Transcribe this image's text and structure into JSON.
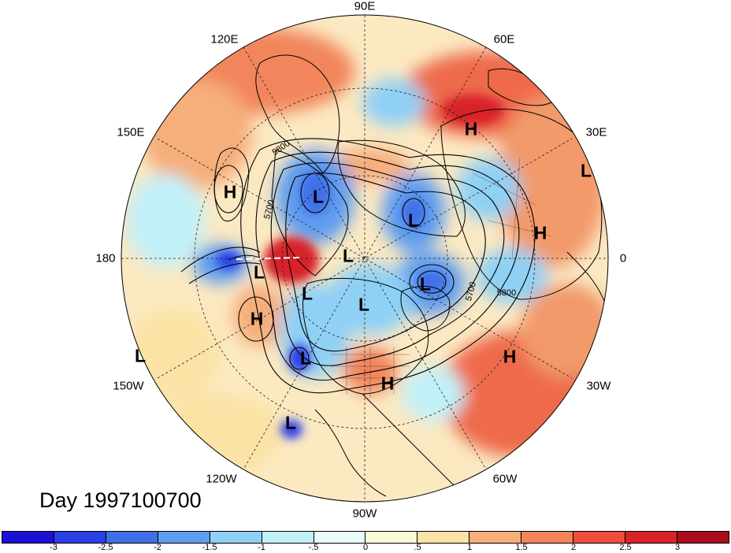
{
  "map": {
    "title": "Day 1997100700",
    "longitude_labels": [
      {
        "text": "90E",
        "angle": 90
      },
      {
        "text": "60E",
        "angle": 60
      },
      {
        "text": "30E",
        "angle": 30
      },
      {
        "text": "0",
        "angle": 0
      },
      {
        "text": "30W",
        "angle": -30
      },
      {
        "text": "60W",
        "angle": -60
      },
      {
        "text": "90W",
        "angle": -90
      },
      {
        "text": "120W",
        "angle": -120
      },
      {
        "text": "150W",
        "angle": -150
      },
      {
        "text": "180",
        "angle": 180
      },
      {
        "text": "150E",
        "angle": 150
      },
      {
        "text": "120E",
        "angle": 120
      }
    ],
    "contour_labels": [
      "5800",
      "5700",
      "5700",
      "5800"
    ],
    "pressure_centers": [
      {
        "type": "H",
        "name": "high-center-1"
      },
      {
        "type": "H",
        "name": "high-center-2"
      },
      {
        "type": "H",
        "name": "high-center-3"
      },
      {
        "type": "H",
        "name": "high-center-4"
      },
      {
        "type": "H",
        "name": "high-center-5"
      },
      {
        "type": "H",
        "name": "high-center-6"
      },
      {
        "type": "L",
        "name": "low-center-1"
      },
      {
        "type": "L",
        "name": "low-center-2"
      },
      {
        "type": "L",
        "name": "low-center-3"
      },
      {
        "type": "L",
        "name": "low-center-4"
      },
      {
        "type": "L",
        "name": "low-center-5"
      },
      {
        "type": "L",
        "name": "low-center-6"
      },
      {
        "type": "L",
        "name": "low-center-7"
      },
      {
        "type": "L",
        "name": "low-center-8"
      },
      {
        "type": "L",
        "name": "low-center-9"
      },
      {
        "type": "L",
        "name": "low-center-10"
      },
      {
        "type": "L",
        "name": "low-center-11"
      }
    ],
    "colorbar": {
      "colors": [
        "#1a10d6",
        "#2a3fe6",
        "#3f6fe8",
        "#5f9cf0",
        "#8fd0f5",
        "#c2f0f8",
        "#eafbfb",
        "#fdf8d8",
        "#fbe3a6",
        "#f6ae7a",
        "#f2855c",
        "#ee4e3c",
        "#d8232a",
        "#a90c1c"
      ],
      "tick_labels": [
        "-3",
        "-2.5",
        "-2",
        "-1.5",
        "-1",
        "-.5",
        "0",
        ".5",
        "1",
        "1.5",
        "2",
        "2.5",
        "3"
      ]
    }
  }
}
